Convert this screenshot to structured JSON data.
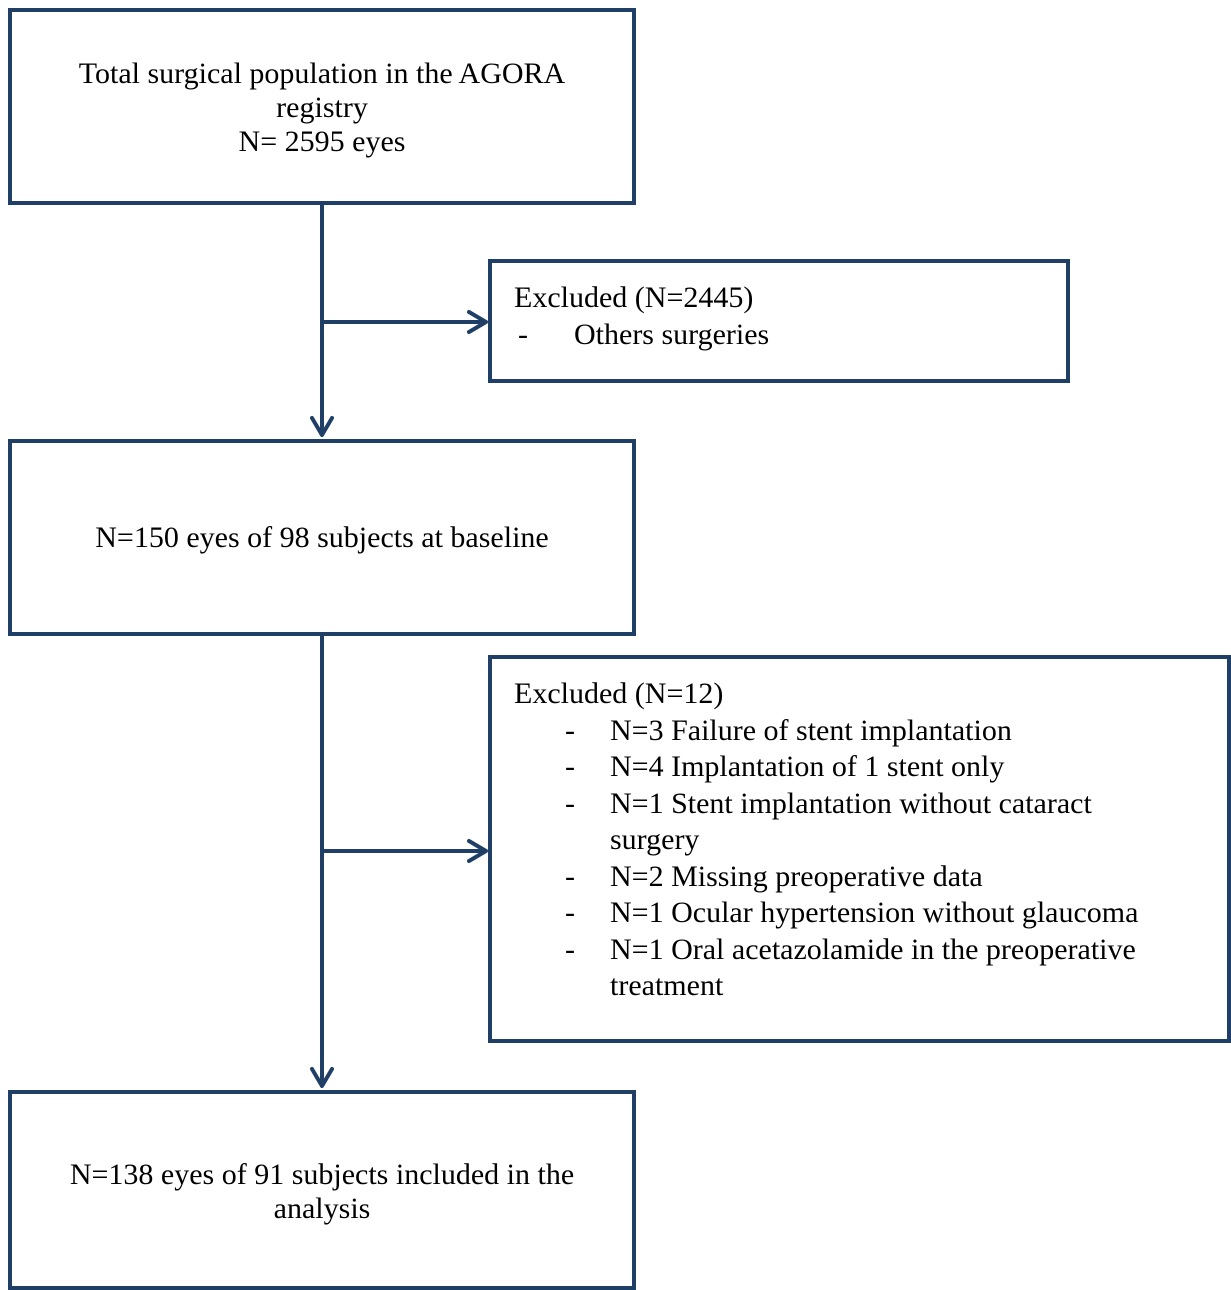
{
  "boxes": {
    "total": {
      "line1": "Total surgical population in the AGORA",
      "line2": "registry",
      "line3": "N= 2595 eyes"
    },
    "excluded1": {
      "title": "Excluded (N=2445)",
      "items": [
        {
          "dash": "-",
          "text": "Others surgeries"
        }
      ]
    },
    "baseline": {
      "text": "N=150 eyes of 98 subjects at baseline"
    },
    "excluded2": {
      "title": "Excluded (N=12)",
      "items": [
        {
          "dash": "-",
          "lines": [
            "N=3 Failure of stent implantation"
          ]
        },
        {
          "dash": "-",
          "lines": [
            "N=4 Implantation of 1 stent only"
          ]
        },
        {
          "dash": "-",
          "lines": [
            "N=1 Stent implantation without cataract",
            "surgery"
          ]
        },
        {
          "dash": "-",
          "lines": [
            "N=2 Missing preoperative data"
          ]
        },
        {
          "dash": "-",
          "lines": [
            "N=1 Ocular hypertension without glaucoma"
          ]
        },
        {
          "dash": "-",
          "lines": [
            "N=1 Oral acetazolamide in the preoperative",
            "treatment"
          ]
        }
      ]
    },
    "final": {
      "line1": "N=138 eyes of 91 subjects included in the",
      "line2": "analysis"
    }
  },
  "colors": {
    "border": "#1f3f66",
    "arrow": "#1f3f66"
  }
}
